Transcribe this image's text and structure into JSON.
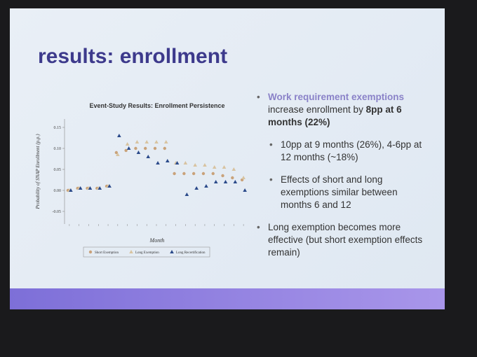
{
  "slide": {
    "title": "results: enrollment",
    "bullets": [
      {
        "parts": [
          "Work requirement exemptions",
          " increase enrollment by ",
          "8pp at 6 months (22%)"
        ],
        "sub": [
          "10pp at 9 months (26%), 4-6pp at 12 months (~18%)",
          "Effects of short and long exemptions similar between months 6 and 12"
        ]
      },
      {
        "text": "Long exemption becomes more effective (but short exemption effects remain)"
      }
    ]
  },
  "chart_data": {
    "type": "scatter",
    "title": "Event-Study Results: Enrollment Persistence",
    "x_label": "Month",
    "y_label": "Probability of SNAP Enrollment (p.p.)",
    "categories": [
      null,
      null,
      null,
      null,
      null,
      null,
      null,
      null,
      null,
      null,
      null,
      null,
      null,
      null,
      null,
      null,
      null,
      null,
      null
    ],
    "series": [
      {
        "name": "Short Exemption",
        "color": "#c9a27a",
        "marker": "circle",
        "values": [
          0,
          0.005,
          0.005,
          0.005,
          0.01,
          0.09,
          0.095,
          0.1,
          0.1,
          0.1,
          0.1,
          0.04,
          0.04,
          0.04,
          0.04,
          0.04,
          0.035,
          0.03,
          0.025
        ]
      },
      {
        "name": "Long Exemption",
        "color": "#d8c3a0",
        "marker": "triangle",
        "values": [
          0,
          0.005,
          0.005,
          0.005,
          0.01,
          0.085,
          0.11,
          0.115,
          0.115,
          0.115,
          0.115,
          0.065,
          0.065,
          0.06,
          0.06,
          0.055,
          0.055,
          0.05,
          0.03
        ]
      },
      {
        "name": "Long Recertification",
        "color": "#2b4a8a",
        "marker": "triangle",
        "values": [
          0,
          0.005,
          0.005,
          0.005,
          0.01,
          0.13,
          0.1,
          0.09,
          0.08,
          0.065,
          0.07,
          0.065,
          -0.01,
          0.005,
          0.01,
          0.02,
          0.02,
          0.02,
          0
        ]
      }
    ],
    "ylim": [
      -0.08,
      0.17
    ],
    "yticks": [
      -0.05,
      {
        "value": 0,
        "label": "0.00"
      },
      0.05,
      {
        "value": 0.1,
        "label": "0.10"
      },
      0.15
    ]
  }
}
